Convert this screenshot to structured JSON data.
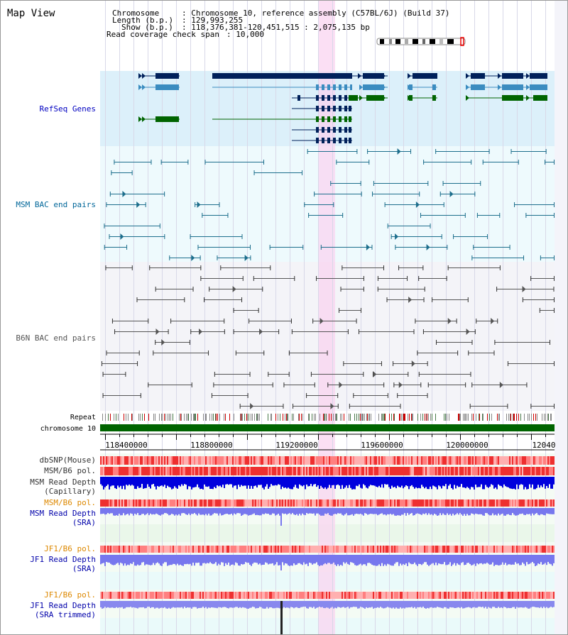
{
  "title": "Map View",
  "info": {
    "chromosome_key": "Chromosome",
    "chromosome_val": ": Chromosome 10, reference assembly (C57BL/6J) (Build 37)",
    "length_key": "Length (b.p.)",
    "length_val": ": 129,993,255",
    "show_key": "Show (b.p.)",
    "show_val": ": 118,376,381-120,451,515 : 2,075,135 bp",
    "coverage_key": "Read coverage check span",
    "coverage_val": ": 10,000"
  },
  "tracks": {
    "refseq": "RefSeq Genes",
    "msm_bac": "MSM BAC end pairs",
    "b6n_bac": "B6N BAC end pairs",
    "repeat": "Repeat",
    "chromosome": "chromosome 10",
    "dbsnp": "dbSNP(Mouse)",
    "msm_b6_pol": "MSM/B6 pol.",
    "msm_depth_cap_1": "MSM Read Depth",
    "msm_depth_cap_2": "(Capillary)",
    "msm_b6_pol2": "MSM/B6 pol.",
    "msm_depth_sra_1": "MSM Read Depth",
    "msm_depth_sra_2": "(SRA)",
    "jf1_b6_pol": "JF1/B6 pol.",
    "jf1_depth_sra_1": "JF1 Read Depth",
    "jf1_depth_sra_2": "(SRA)",
    "jf1_b6_pol2": "JF1/B6 pol.",
    "jf1_depth_trim_1": "JF1 Read Depth",
    "jf1_depth_trim_2": "(SRA trimmed)"
  },
  "axis": {
    "ticks": [
      "118400000",
      "118800000",
      "119200000",
      "119600000",
      "120000000",
      "12040"
    ]
  },
  "colors": {
    "refseq_bg": "#dcf0fa",
    "msm_bg": "#eefafd",
    "b6n_bg": "#f4f4f8",
    "highlight": "#f9d4f0",
    "refseq_label": "#0000c0",
    "msm_label": "#006699",
    "b6n_label": "#555555",
    "gene_dark": "#00205a",
    "gene_mid": "#3b8cc0",
    "gene_green": "#006400",
    "chromosome_bar": "#006400",
    "depth_capillary": "#0000dd",
    "depth_sra": "#7777ee",
    "pol_label_orange": "#dd8800",
    "depth_label_blue": "#0000aa"
  }
}
